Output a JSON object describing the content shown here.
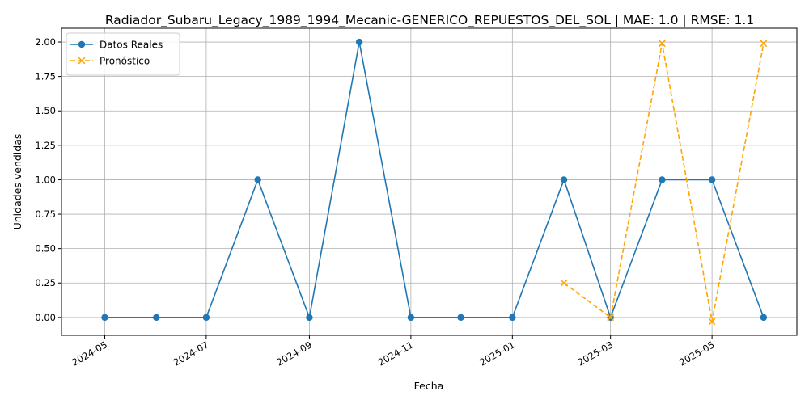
{
  "chart_data": {
    "type": "line",
    "title": "Radiador_Subaru_Legacy_1989_1994_Mecanic-GENERICO_REPUESTOS_DEL_SOL | MAE: 1.0 | RMSE: 1.1",
    "xlabel": "Fecha",
    "ylabel": "Unidades vendidas",
    "grid": true,
    "legend_position": "top-left",
    "x_ticks": [
      "2024-05",
      "2024-07",
      "2024-09",
      "2024-11",
      "2025-01",
      "2025-03",
      "2025-05"
    ],
    "y_ticks": [
      "0.00",
      "0.25",
      "0.50",
      "0.75",
      "1.00",
      "1.25",
      "1.50",
      "1.75",
      "2.00"
    ],
    "xlim": [
      "2024-04-05",
      "2025-06-21"
    ],
    "ylim": [
      -0.13,
      2.1
    ],
    "series": [
      {
        "name": "Datos Reales",
        "color": "#1f77b4",
        "style": "solid",
        "marker": "circle",
        "points": [
          {
            "x": "2024-05-01",
            "y": 0
          },
          {
            "x": "2024-06-01",
            "y": 0
          },
          {
            "x": "2024-07-01",
            "y": 0
          },
          {
            "x": "2024-08-01",
            "y": 1
          },
          {
            "x": "2024-09-01",
            "y": 0
          },
          {
            "x": "2024-10-01",
            "y": 2
          },
          {
            "x": "2024-11-01",
            "y": 0
          },
          {
            "x": "2024-12-01",
            "y": 0
          },
          {
            "x": "2025-01-01",
            "y": 0
          },
          {
            "x": "2025-02-01",
            "y": 1
          },
          {
            "x": "2025-03-01",
            "y": 0
          },
          {
            "x": "2025-04-01",
            "y": 1
          },
          {
            "x": "2025-05-01",
            "y": 1
          },
          {
            "x": "2025-06-01",
            "y": 0
          }
        ]
      },
      {
        "name": "Pronóstico",
        "color": "#ffa500",
        "style": "dashed",
        "marker": "x",
        "points": [
          {
            "x": "2025-02-01",
            "y": 0.25
          },
          {
            "x": "2025-03-01",
            "y": 0.0
          },
          {
            "x": "2025-04-01",
            "y": 1.99
          },
          {
            "x": "2025-05-01",
            "y": -0.03
          },
          {
            "x": "2025-06-01",
            "y": 1.99
          }
        ]
      }
    ]
  }
}
